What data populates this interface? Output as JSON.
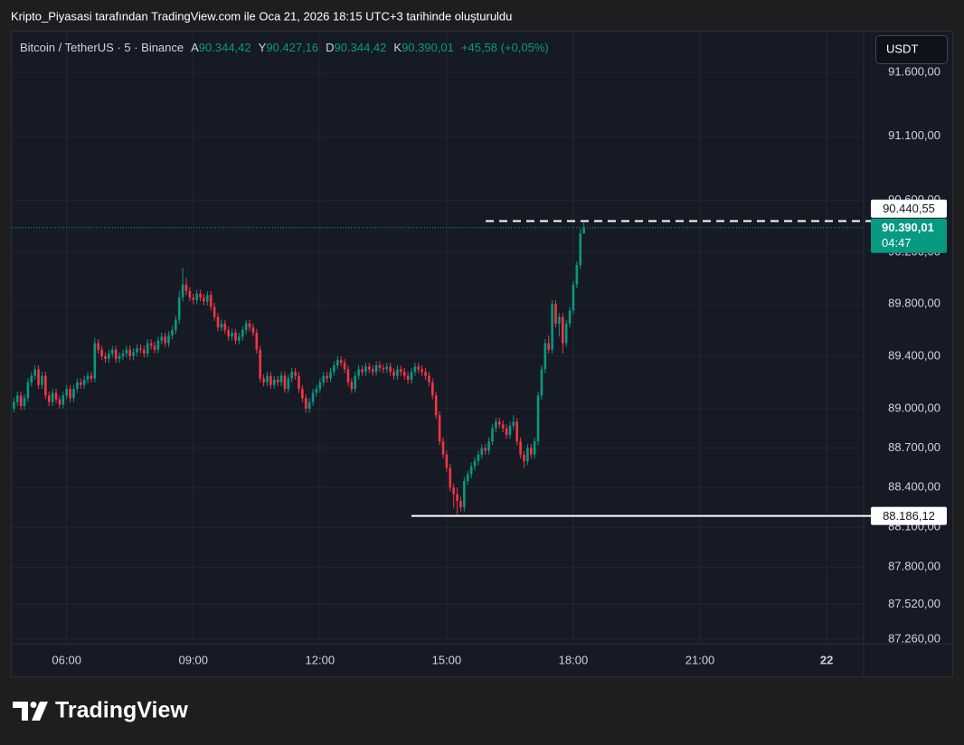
{
  "caption": "Kripto_Piyasasi tarafından TradingView.com ile Oca 21, 2026 18:15 UTC+3 tarihinde oluşturuldu",
  "brand": "TradingView",
  "chart_data": {
    "type": "candlestick",
    "symbol": "Bitcoin / TetherUS · 5 · Binance",
    "ohlc_header": [
      {
        "label": "A",
        "value": "90.344,42"
      },
      {
        "label": "Y",
        "value": "90.427,16"
      },
      {
        "label": "D",
        "value": "90.344,42"
      },
      {
        "label": "K",
        "value": "90.390,01"
      }
    ],
    "change": "+45,58 (+0,05%)",
    "currency": "USDT",
    "up_color": "#089981",
    "down_color": "#f23645",
    "log_scale": true,
    "grid": true,
    "xlim": [
      282,
      1490
    ],
    "xticks": [
      {
        "value": 360,
        "label": "06:00"
      },
      {
        "value": 540,
        "label": "09:00"
      },
      {
        "value": 720,
        "label": "12:00"
      },
      {
        "value": 900,
        "label": "15:00"
      },
      {
        "value": 1080,
        "label": "18:00"
      },
      {
        "value": 1260,
        "label": "21:00"
      },
      {
        "value": 1440,
        "label": "22"
      }
    ],
    "ylim": [
      86990,
      91919
    ],
    "yticks": [
      {
        "value": 91600,
        "label": "91.600,00"
      },
      {
        "value": 91100,
        "label": "91.100,00"
      },
      {
        "value": 90600,
        "label": "90.600,00"
      },
      {
        "value": 90200,
        "label": "90.200,00"
      },
      {
        "value": 89800,
        "label": "89.800,00"
      },
      {
        "value": 89400,
        "label": "89.400,00"
      },
      {
        "value": 89000,
        "label": "89.000,00"
      },
      {
        "value": 88700,
        "label": "88.700,00"
      },
      {
        "value": 88400,
        "label": "88.400,00"
      },
      {
        "value": 88100,
        "label": "88.100,00"
      },
      {
        "value": 87800,
        "label": "87.800,00"
      },
      {
        "value": 87520,
        "label": "87.520,00"
      },
      {
        "value": 87260,
        "label": "87.260,00"
      }
    ],
    "price_lines": [
      {
        "value": 90440.55,
        "label": "90.440,55",
        "style": "dashed"
      },
      {
        "value": 88186.12,
        "label": "88.186,12",
        "style": "solid"
      }
    ],
    "last_price_label": "90.390,01",
    "countdown": "04:47",
    "x": [
      285,
      290,
      295,
      300,
      305,
      310,
      315,
      320,
      325,
      330,
      335,
      340,
      345,
      350,
      355,
      360,
      365,
      370,
      375,
      380,
      385,
      390,
      395,
      400,
      405,
      410,
      415,
      420,
      425,
      430,
      435,
      440,
      445,
      450,
      455,
      460,
      465,
      470,
      475,
      480,
      485,
      490,
      495,
      500,
      505,
      510,
      515,
      520,
      525,
      530,
      535,
      540,
      545,
      550,
      555,
      560,
      565,
      570,
      575,
      580,
      585,
      590,
      595,
      600,
      605,
      610,
      615,
      620,
      625,
      630,
      635,
      640,
      645,
      650,
      655,
      660,
      665,
      670,
      675,
      680,
      685,
      690,
      695,
      700,
      705,
      710,
      715,
      720,
      725,
      730,
      735,
      740,
      745,
      750,
      755,
      760,
      765,
      770,
      775,
      780,
      785,
      790,
      795,
      800,
      805,
      810,
      815,
      820,
      825,
      830,
      835,
      840,
      845,
      850,
      855,
      860,
      865,
      870,
      875,
      880,
      885,
      890,
      895,
      900,
      905,
      910,
      915,
      920,
      925,
      930,
      935,
      940,
      945,
      950,
      955,
      960,
      965,
      970,
      975,
      980,
      985,
      990,
      995,
      1000,
      1005,
      1010,
      1015,
      1020,
      1025,
      1030,
      1035,
      1040,
      1045,
      1050,
      1055,
      1060,
      1065,
      1070,
      1075,
      1080,
      1085,
      1090,
      1095
    ],
    "open": [
      89000,
      89050,
      89100,
      89020,
      89080,
      89200,
      89250,
      89300,
      89180,
      89250,
      89100,
      89050,
      89120,
      89070,
      89030,
      89100,
      89150,
      89080,
      89150,
      89200,
      89180,
      89220,
      89250,
      89230,
      89500,
      89450,
      89400,
      89380,
      89420,
      89450,
      89380,
      89400,
      89420,
      89450,
      89400,
      89430,
      89460,
      89450,
      89420,
      89500,
      89480,
      89450,
      89520,
      89550,
      89500,
      89560,
      89600,
      89680,
      89850,
      89950,
      89900,
      89850,
      89830,
      89880,
      89850,
      89820,
      89870,
      89780,
      89700,
      89620,
      89650,
      89600,
      89550,
      89580,
      89520,
      89550,
      89600,
      89650,
      89620,
      89580,
      89450,
      89230,
      89200,
      89250,
      89180,
      89220,
      89200,
      89250,
      89150,
      89230,
      89280,
      89250,
      89150,
      89080,
      89000,
      89050,
      89120,
      89150,
      89200,
      89250,
      89230,
      89280,
      89330,
      89370,
      89350,
      89300,
      89200,
      89150,
      89250,
      89300,
      89280,
      89320,
      89300,
      89280,
      89330,
      89310,
      89300,
      89320,
      89280,
      89250,
      89300,
      89280,
      89250,
      89220,
      89280,
      89320,
      89300,
      89280,
      89250,
      89200,
      89100,
      88950,
      88750,
      88650,
      88550,
      88400,
      88350,
      88300,
      88250,
      88450,
      88500,
      88560,
      88600,
      88650,
      88700,
      88680,
      88750,
      88850,
      88900,
      88880,
      88850,
      88800,
      88870,
      88900,
      88750,
      88650,
      88600,
      88700,
      88650,
      88750,
      89100,
      89300,
      89500,
      89450,
      89800,
      89650,
      89700,
      89500,
      89650,
      89750,
      89950,
      90100,
      90344.42
    ],
    "high": [
      89080,
      89130,
      89130,
      89110,
      89230,
      89280,
      89330,
      89330,
      89280,
      89280,
      89130,
      89150,
      89150,
      89100,
      89130,
      89180,
      89180,
      89180,
      89230,
      89230,
      89250,
      89280,
      89280,
      89540,
      89530,
      89480,
      89430,
      89450,
      89480,
      89480,
      89430,
      89450,
      89480,
      89480,
      89460,
      89490,
      89490,
      89480,
      89530,
      89530,
      89510,
      89550,
      89580,
      89580,
      89590,
      89630,
      89710,
      89900,
      90080,
      90000,
      89930,
      89880,
      89910,
      89910,
      89880,
      89900,
      89900,
      89810,
      89730,
      89680,
      89680,
      89630,
      89610,
      89610,
      89580,
      89630,
      89680,
      89680,
      89650,
      89610,
      89480,
      89260,
      89280,
      89280,
      89250,
      89250,
      89280,
      89280,
      89260,
      89310,
      89310,
      89280,
      89180,
      89110,
      89080,
      89150,
      89180,
      89230,
      89280,
      89280,
      89310,
      89360,
      89400,
      89400,
      89380,
      89330,
      89230,
      89280,
      89330,
      89330,
      89350,
      89350,
      89330,
      89360,
      89360,
      89340,
      89350,
      89350,
      89310,
      89330,
      89330,
      89310,
      89280,
      89310,
      89350,
      89350,
      89330,
      89310,
      89280,
      89230,
      89130,
      88980,
      88780,
      88680,
      88580,
      88430,
      88400,
      88330,
      88480,
      88530,
      88590,
      88630,
      88680,
      88730,
      88730,
      88780,
      88880,
      88930,
      88930,
      88910,
      88880,
      88900,
      88950,
      88930,
      88780,
      88680,
      88730,
      88730,
      88780,
      89130,
      89330,
      89530,
      89560,
      89830,
      89830,
      89730,
      89730,
      89680,
      89780,
      89980,
      90130,
      90380,
      90427.16
    ],
    "low": [
      88970,
      89020,
      88990,
      88990,
      89050,
      89170,
      89220,
      89150,
      89150,
      89070,
      89020,
      89020,
      89040,
      89000,
      89000,
      89070,
      89050,
      89050,
      89120,
      89150,
      89150,
      89190,
      89200,
      89200,
      89420,
      89370,
      89350,
      89350,
      89390,
      89350,
      89350,
      89370,
      89390,
      89370,
      89370,
      89400,
      89420,
      89390,
      89390,
      89450,
      89420,
      89420,
      89490,
      89470,
      89470,
      89530,
      89570,
      89650,
      89820,
      89870,
      89820,
      89800,
      89800,
      89820,
      89790,
      89790,
      89750,
      89670,
      89590,
      89590,
      89570,
      89520,
      89520,
      89490,
      89490,
      89520,
      89570,
      89590,
      89550,
      89420,
      89200,
      89170,
      89170,
      89150,
      89150,
      89170,
      89170,
      89120,
      89120,
      89200,
      89220,
      89120,
      89050,
      88970,
      88970,
      89020,
      89090,
      89120,
      89170,
      89200,
      89200,
      89250,
      89300,
      89320,
      89270,
      89170,
      89120,
      89120,
      89220,
      89250,
      89250,
      89270,
      89250,
      89250,
      89280,
      89270,
      89270,
      89250,
      89220,
      89220,
      89250,
      89220,
      89190,
      89190,
      89250,
      89270,
      89250,
      89220,
      89170,
      89070,
      88920,
      88720,
      88620,
      88520,
      88370,
      88250,
      88186.12,
      88220,
      88220,
      88420,
      88470,
      88530,
      88570,
      88620,
      88650,
      88650,
      88720,
      88820,
      88850,
      88820,
      88770,
      88770,
      88840,
      88720,
      88620,
      88550,
      88570,
      88620,
      88620,
      88720,
      89070,
      89270,
      89420,
      89420,
      89620,
      89550,
      89420,
      89470,
      89620,
      89720,
      89920,
      90070,
      90344.42
    ],
    "close": [
      89050,
      89100,
      89020,
      89080,
      89200,
      89250,
      89300,
      89180,
      89250,
      89100,
      89050,
      89120,
      89070,
      89030,
      89100,
      89150,
      89080,
      89150,
      89200,
      89180,
      89220,
      89250,
      89230,
      89500,
      89450,
      89400,
      89380,
      89420,
      89450,
      89380,
      89400,
      89420,
      89450,
      89400,
      89430,
      89460,
      89450,
      89420,
      89500,
      89480,
      89450,
      89520,
      89550,
      89500,
      89560,
      89600,
      89680,
      89850,
      89950,
      89900,
      89850,
      89830,
      89880,
      89850,
      89820,
      89870,
      89780,
      89700,
      89620,
      89650,
      89600,
      89550,
      89580,
      89520,
      89550,
      89600,
      89650,
      89620,
      89580,
      89450,
      89230,
      89200,
      89250,
      89180,
      89220,
      89200,
      89250,
      89150,
      89230,
      89280,
      89250,
      89150,
      89080,
      89000,
      89050,
      89120,
      89150,
      89200,
      89250,
      89230,
      89280,
      89330,
      89370,
      89350,
      89300,
      89200,
      89150,
      89250,
      89300,
      89280,
      89320,
      89300,
      89280,
      89330,
      89310,
      89300,
      89320,
      89280,
      89250,
      89300,
      89280,
      89250,
      89220,
      89280,
      89320,
      89300,
      89280,
      89250,
      89200,
      89100,
      88950,
      88750,
      88650,
      88550,
      88400,
      88350,
      88300,
      88250,
      88450,
      88500,
      88560,
      88600,
      88650,
      88700,
      88680,
      88750,
      88850,
      88900,
      88880,
      88850,
      88800,
      88870,
      88900,
      88750,
      88650,
      88600,
      88700,
      88650,
      88750,
      89100,
      89300,
      89500,
      89450,
      89800,
      89650,
      89700,
      89500,
      89650,
      89750,
      89950,
      90100,
      90344.42,
      90390.01
    ]
  }
}
